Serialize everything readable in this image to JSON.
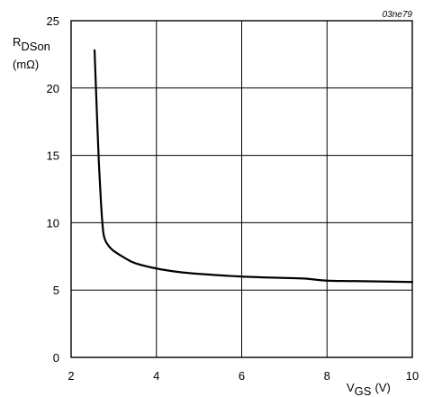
{
  "chart_data": {
    "type": "line",
    "figure_ref": "03ne79",
    "ylabel_main": "R",
    "ylabel_sub": "DSon",
    "ylabel_unit": "(mΩ)",
    "xlabel_main": "V",
    "xlabel_sub": "GS",
    "xlabel_unit": "(V)",
    "xlim": [
      2,
      10
    ],
    "ylim": [
      0,
      25
    ],
    "xticks": [
      "2",
      "4",
      "6",
      "8",
      "10"
    ],
    "yticks": [
      "0",
      "5",
      "10",
      "15",
      "20",
      "25"
    ],
    "grid": true,
    "series": [
      {
        "x": [
          2.55,
          2.6,
          2.65,
          2.7,
          2.75,
          2.8,
          2.9,
          3.0,
          3.25,
          3.5,
          4.0,
          4.5,
          5.0,
          6.0,
          7.0,
          7.5,
          8.0,
          9.0,
          10.0
        ],
        "y": [
          22.8,
          18.5,
          14.5,
          11.5,
          9.4,
          8.7,
          8.2,
          7.9,
          7.4,
          7.0,
          6.6,
          6.35,
          6.2,
          6.0,
          5.9,
          5.85,
          5.7,
          5.65,
          5.6
        ]
      }
    ]
  }
}
